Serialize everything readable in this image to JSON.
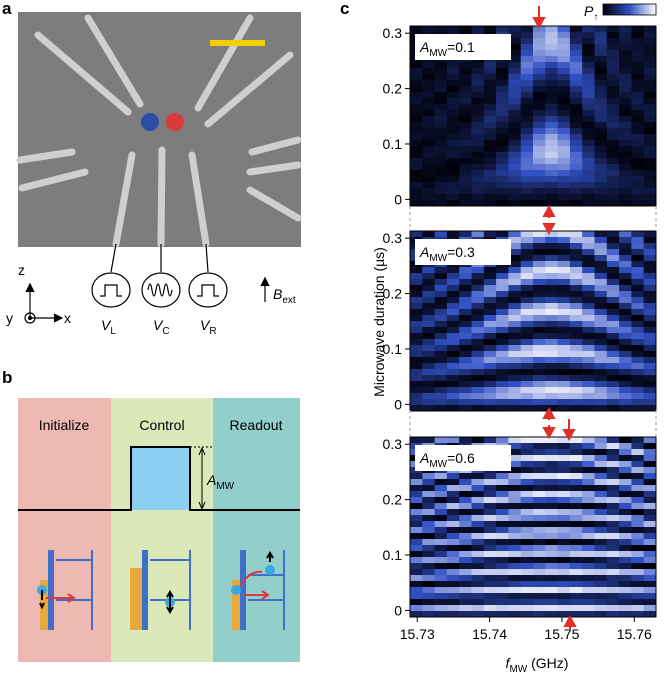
{
  "panel_a": {
    "label": "a",
    "axes": {
      "z": "z",
      "y": "y",
      "x": "x"
    },
    "gates": [
      {
        "main": "V",
        "sub": "L"
      },
      {
        "main": "V",
        "sub": "C"
      },
      {
        "main": "V",
        "sub": "R"
      }
    ],
    "field": {
      "main": "B",
      "sub": "ext"
    }
  },
  "panel_b": {
    "label": "b",
    "stages": [
      "Initialize",
      "Control",
      "Readout"
    ],
    "amplitude": {
      "main": "A",
      "sub": "MW"
    }
  },
  "panel_c": {
    "label": "c",
    "colorbar": {
      "main": "P",
      "sub": "↑"
    },
    "panels": [
      {
        "main": "A",
        "sub": "MW",
        "rest": "=0.1"
      },
      {
        "main": "A",
        "sub": "MW",
        "rest": "=0.3"
      },
      {
        "main": "A",
        "sub": "MW",
        "rest": "=0.6"
      }
    ],
    "xticks": [
      15.73,
      15.74,
      15.75,
      15.76
    ],
    "xlim": [
      15.729,
      15.763
    ],
    "yticks": [
      0,
      0.1,
      0.2,
      0.3
    ],
    "ylim": [
      -0.012,
      0.313
    ],
    "xlabel": {
      "main": "f",
      "sub": "MW",
      "rest": " (GHz)"
    },
    "ylabel": "Microwave duration (µs)"
  }
}
